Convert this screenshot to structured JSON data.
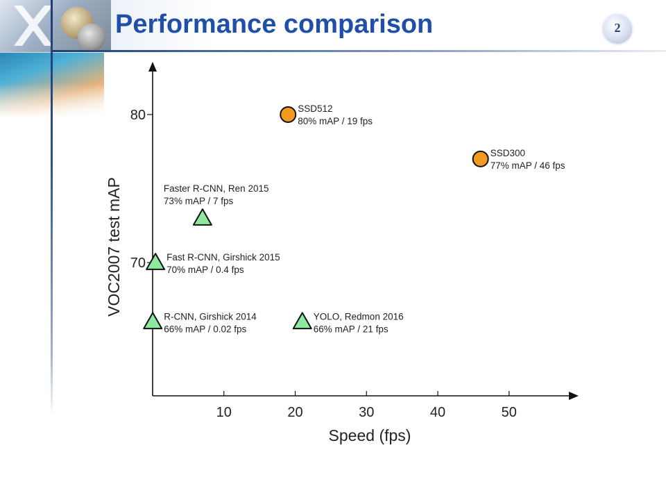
{
  "slide": {
    "title": "Performance comparison",
    "page_number": "2"
  },
  "chart_data": {
    "type": "scatter",
    "title": "",
    "xlabel": "Speed (fps)",
    "ylabel": "VOC2007 test mAP",
    "xlim": [
      0,
      58
    ],
    "ylim": [
      61,
      83
    ],
    "x_ticks": [
      10,
      20,
      30,
      40,
      50
    ],
    "y_ticks": [
      70,
      80
    ],
    "grid": false,
    "points": [
      {
        "name": "SSD512",
        "label": "80% mAP / 19 fps",
        "x": 19,
        "y": 80,
        "marker": "circle",
        "color": "#f39a1e"
      },
      {
        "name": "SSD300",
        "label": "77% mAP / 46 fps",
        "x": 46,
        "y": 77,
        "marker": "circle",
        "color": "#f39a1e"
      },
      {
        "name": "Faster R-CNN, Ren 2015",
        "label": "73% mAP / 7 fps",
        "x": 7,
        "y": 73,
        "marker": "triangle",
        "color": "#8ee8a0"
      },
      {
        "name": "Fast R-CNN, Girshick 2015",
        "label": "70% mAP / 0.4 fps",
        "x": 0.4,
        "y": 70,
        "marker": "triangle",
        "color": "#8ee8a0"
      },
      {
        "name": "R-CNN, Girshick 2014",
        "label": "66% mAP / 0.02 fps",
        "x": 0.02,
        "y": 66,
        "marker": "triangle",
        "color": "#8ee8a0"
      },
      {
        "name": "YOLO, Redmon 2016",
        "label": "66% mAP / 21 fps",
        "x": 21,
        "y": 66,
        "marker": "triangle",
        "color": "#8ee8a0"
      }
    ]
  }
}
